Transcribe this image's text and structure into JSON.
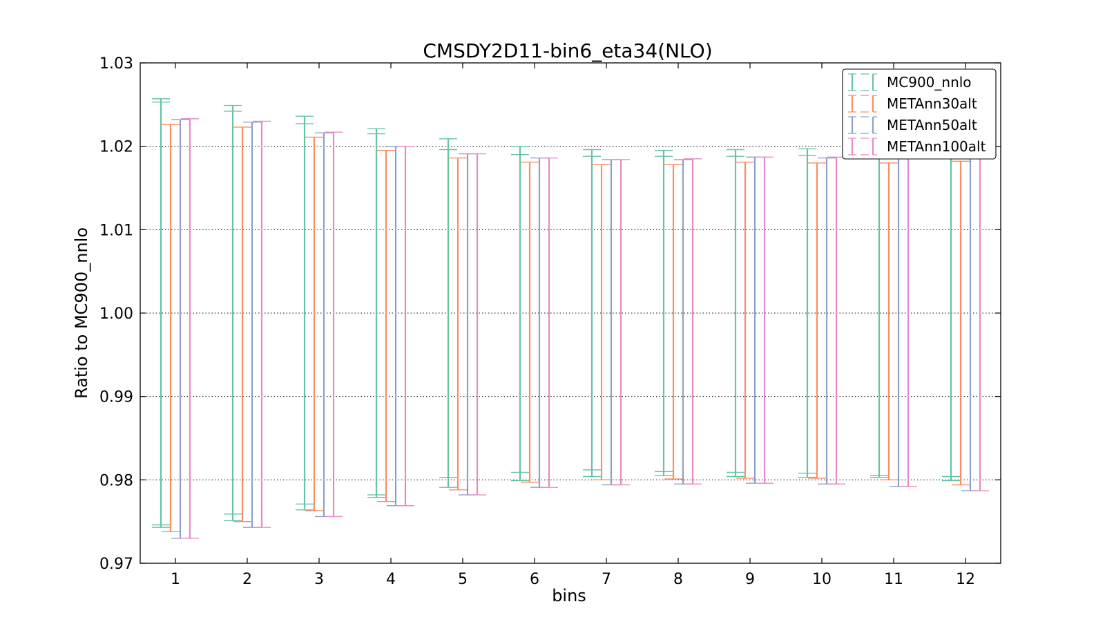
{
  "chart_data": {
    "type": "errorbar",
    "title": "CMSDY2D11-bin6_eta34(NLO)",
    "xlabel": "bins",
    "ylabel": "Ratio to MC900_nnlo",
    "ylim": [
      0.97,
      1.03
    ],
    "yticks": [
      "0.97",
      "0.98",
      "0.99",
      "1.00",
      "1.01",
      "1.02",
      "1.03"
    ],
    "ytick_values": [
      0.97,
      0.98,
      0.99,
      1.0,
      1.01,
      1.02,
      1.03
    ],
    "categories": [
      "1",
      "2",
      "3",
      "4",
      "5",
      "6",
      "7",
      "8",
      "9",
      "10",
      "11",
      "12"
    ],
    "grid": "horizontal dotted",
    "legend_position": "top-right",
    "series": [
      {
        "name": "MC900_nnlo",
        "color": "#66c2a5",
        "upper": [
          1.0257,
          1.0249,
          1.0236,
          1.0221,
          1.0209,
          1.02,
          1.0196,
          1.0195,
          1.0196,
          1.0197,
          1.0197,
          1.0198
        ],
        "lower": [
          0.9743,
          0.9751,
          0.9764,
          0.9779,
          0.9791,
          0.9799,
          0.9804,
          0.9805,
          0.9804,
          0.9803,
          0.9803,
          0.9799
        ],
        "inner_upper": [
          1.0253,
          1.0242,
          1.0227,
          1.0215,
          1.0196,
          1.019,
          1.0188,
          1.0188,
          1.0188,
          1.0189,
          1.0188,
          1.0186
        ],
        "inner_lower": [
          0.9746,
          0.9759,
          0.9771,
          0.9782,
          0.9803,
          0.9809,
          0.9812,
          0.981,
          0.9809,
          0.9808,
          0.9805,
          0.9804
        ]
      },
      {
        "name": "METAnn30alt",
        "color": "#fc8d62",
        "upper": [
          1.0226,
          1.0223,
          1.0211,
          1.0195,
          1.0186,
          1.0181,
          1.0178,
          1.0178,
          1.0181,
          1.018,
          1.018,
          1.0182
        ],
        "lower": [
          0.9738,
          0.975,
          0.9763,
          0.9774,
          0.9788,
          0.9797,
          0.98,
          0.9801,
          0.9802,
          0.9802,
          0.98,
          0.9794
        ]
      },
      {
        "name": "METAnn50alt",
        "color": "#8da0cb",
        "upper": [
          1.0232,
          1.0229,
          1.0216,
          1.02,
          1.0191,
          1.0186,
          1.0184,
          1.0184,
          1.0187,
          1.0186,
          1.0186,
          1.0187
        ],
        "lower": [
          0.973,
          0.9743,
          0.9756,
          0.9769,
          0.9782,
          0.9791,
          0.9794,
          0.9795,
          0.9796,
          0.9795,
          0.9792,
          0.9787
        ]
      },
      {
        "name": "METAnn100alt",
        "color": "#e78ac3",
        "upper": [
          1.0233,
          1.023,
          1.0217,
          1.02,
          1.0191,
          1.0186,
          1.0184,
          1.0185,
          1.0187,
          1.0187,
          1.0186,
          1.0187
        ],
        "lower": [
          0.973,
          0.9743,
          0.9756,
          0.9769,
          0.9782,
          0.9791,
          0.9794,
          0.9795,
          0.9796,
          0.9795,
          0.9792,
          0.9787
        ]
      }
    ]
  }
}
